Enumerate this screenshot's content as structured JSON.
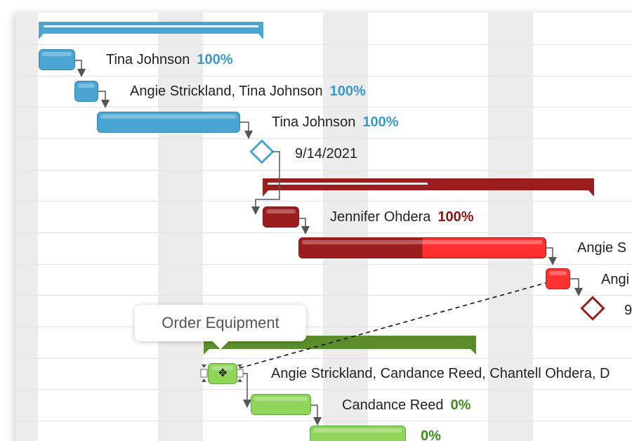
{
  "colors": {
    "blue": "#4aa5d3",
    "blue_pct": "#3a9ac7",
    "dark_red": "#9b1d1d",
    "red": "#ff3030",
    "green": "#5b8e2b",
    "light_green": "#8fd55a",
    "green_pct": "#3e8a1a"
  },
  "tasks": [
    {
      "assignees": "Tina Johnson",
      "progress": "100%"
    },
    {
      "assignees": "Angie Strickland, Tina Johnson",
      "progress": "100%"
    },
    {
      "assignees": "Tina Johnson",
      "progress": "100%"
    },
    {
      "milestone_date": "9/14/2021"
    },
    {
      "assignees": "Jennifer Ohdera",
      "progress": "100%"
    },
    {
      "assignees": "Angie S"
    },
    {
      "assignees": "Angi"
    },
    {
      "milestone_date": "9"
    },
    {
      "assignees": "Angie Strickland, Candance Reed, Chantell Ohdera, D"
    },
    {
      "assignees": "Candance Reed",
      "progress": "0%"
    },
    {
      "progress": "0%"
    }
  ],
  "tooltip": {
    "text": "Order Equipment"
  },
  "icons": {
    "drag": "move-icon"
  }
}
